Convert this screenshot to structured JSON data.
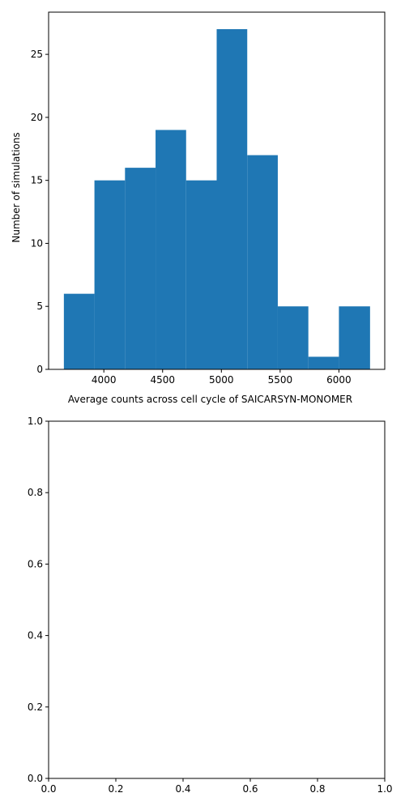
{
  "chart_data": [
    {
      "type": "bar",
      "subtype": "histogram",
      "title": "",
      "xlabel": "Average counts across cell cycle of SAICARSYN-MONOMER",
      "ylabel": "Number of simulations",
      "bin_edges": [
        3660,
        3920,
        4180,
        4440,
        4700,
        4960,
        5220,
        5480,
        5740,
        6000,
        6265
      ],
      "values": [
        6,
        15,
        16,
        19,
        15,
        27,
        17,
        5,
        1,
        5
      ],
      "xlim": [
        3530,
        6390
      ],
      "ylim": [
        0,
        28.35
      ],
      "xticks": [
        4000,
        4500,
        5000,
        5500,
        6000
      ],
      "xtick_labels": [
        "4000",
        "4500",
        "5000",
        "5500",
        "6000"
      ],
      "yticks": [
        0,
        5,
        10,
        15,
        20,
        25
      ],
      "ytick_labels": [
        "0",
        "5",
        "10",
        "15",
        "20",
        "25"
      ],
      "bar_color": "#1f77b4",
      "grid": false
    },
    {
      "type": "scatter",
      "title": "",
      "xlabel": "",
      "ylabel": "",
      "xlim": [
        0,
        1
      ],
      "ylim": [
        0,
        1
      ],
      "xticks": [
        0,
        0.2,
        0.4,
        0.6,
        0.8,
        1
      ],
      "xtick_labels": [
        "0.0",
        "0.2",
        "0.4",
        "0.6",
        "0.8",
        "1.0"
      ],
      "yticks": [
        0,
        0.2,
        0.4,
        0.6,
        0.8,
        1
      ],
      "ytick_labels": [
        "0.0",
        "0.2",
        "0.4",
        "0.6",
        "0.8",
        "1.0"
      ],
      "grid": false,
      "series": []
    }
  ]
}
